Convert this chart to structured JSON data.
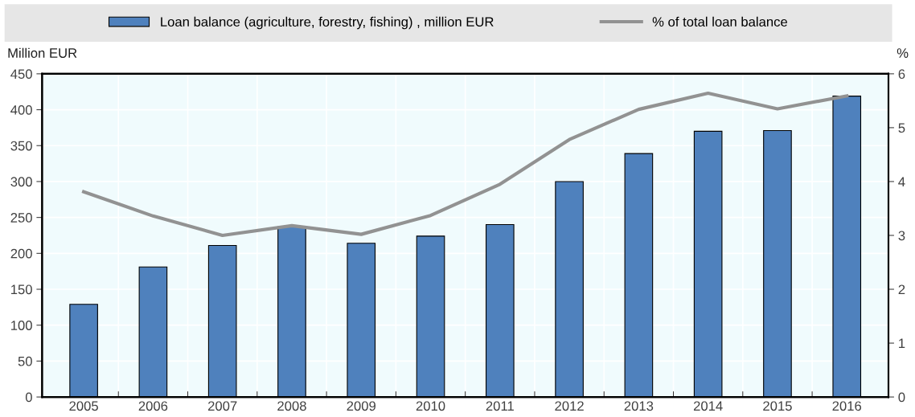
{
  "chart_data": {
    "type": "bar",
    "categories": [
      "2005",
      "2006",
      "2007",
      "2008",
      "2009",
      "2010",
      "2011",
      "2012",
      "2013",
      "2014",
      "2015",
      "2016"
    ],
    "series": [
      {
        "name": "Loan balance (agriculture, forestry, fishing) , million EUR",
        "color": "#4f81bd",
        "values": [
          129,
          181,
          211,
          237,
          214,
          224,
          240,
          300,
          339,
          370,
          371,
          419
        ]
      },
      {
        "name": "% of total loan balance",
        "type": "line",
        "axis": "y2",
        "color": "#929292",
        "values": [
          3.81,
          3.36,
          3.0,
          3.18,
          3.02,
          3.37,
          3.95,
          4.78,
          5.34,
          5.64,
          5.35,
          5.59
        ]
      }
    ],
    "ylabel": "Million EUR",
    "y2label": "%",
    "ylim": [
      0,
      450
    ],
    "yticks": [
      0,
      50,
      100,
      150,
      200,
      250,
      300,
      350,
      400,
      450
    ],
    "y2lim": [
      0,
      6
    ],
    "y2ticks": [
      0,
      1,
      2,
      3,
      4,
      5,
      6
    ],
    "grid": true,
    "legend": "top"
  }
}
